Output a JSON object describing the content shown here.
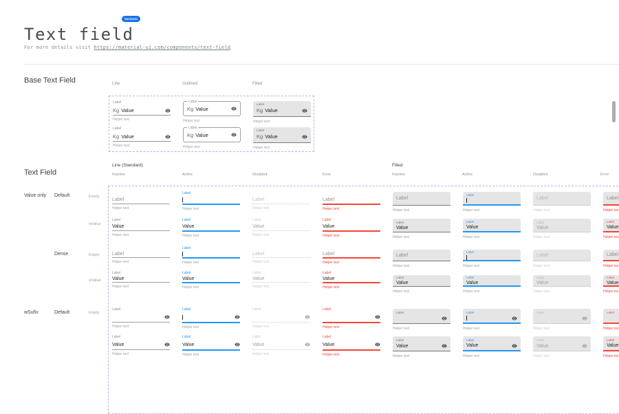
{
  "header": {
    "title": "Text field",
    "badge": "Variants",
    "details_prefix": "For more details visit ",
    "details_link": "https://material-ui.com/components/text-field"
  },
  "base_section": {
    "title": "Base Text Field",
    "columns": [
      "Line",
      "Outlined",
      "Filled"
    ],
    "field": {
      "label": "Label",
      "prefix": "Kg",
      "value": "Value",
      "helper": "Helper text"
    }
  },
  "matrix_section": {
    "title": "Text Field",
    "groups": [
      {
        "label": "Line (Standard)",
        "states": [
          "Inactive",
          "Active",
          "Disabled",
          "Error"
        ]
      },
      {
        "label": "Filled",
        "states": [
          "Inactive",
          "Active",
          "Disabled",
          "Error"
        ]
      }
    ],
    "row_groups": [
      {
        "category": "Value only",
        "variant": "Default",
        "rows": [
          "Empty",
          "wValue"
        ]
      },
      {
        "category": "",
        "variant": "Dense",
        "rows": [
          "Empty",
          "wValue"
        ]
      },
      {
        "category": "wSufix",
        "variant": "Default",
        "rows": [
          "Empty"
        ]
      }
    ],
    "field_text": {
      "label": "Label",
      "value": "Value",
      "helper": "Helper text"
    }
  },
  "colors": {
    "accent": "#2196F3",
    "error": "#F44336",
    "badge_bg": "#1A73E8",
    "filled_bg": "#E5E5E5",
    "dashed_border": "#B9AFEF"
  }
}
